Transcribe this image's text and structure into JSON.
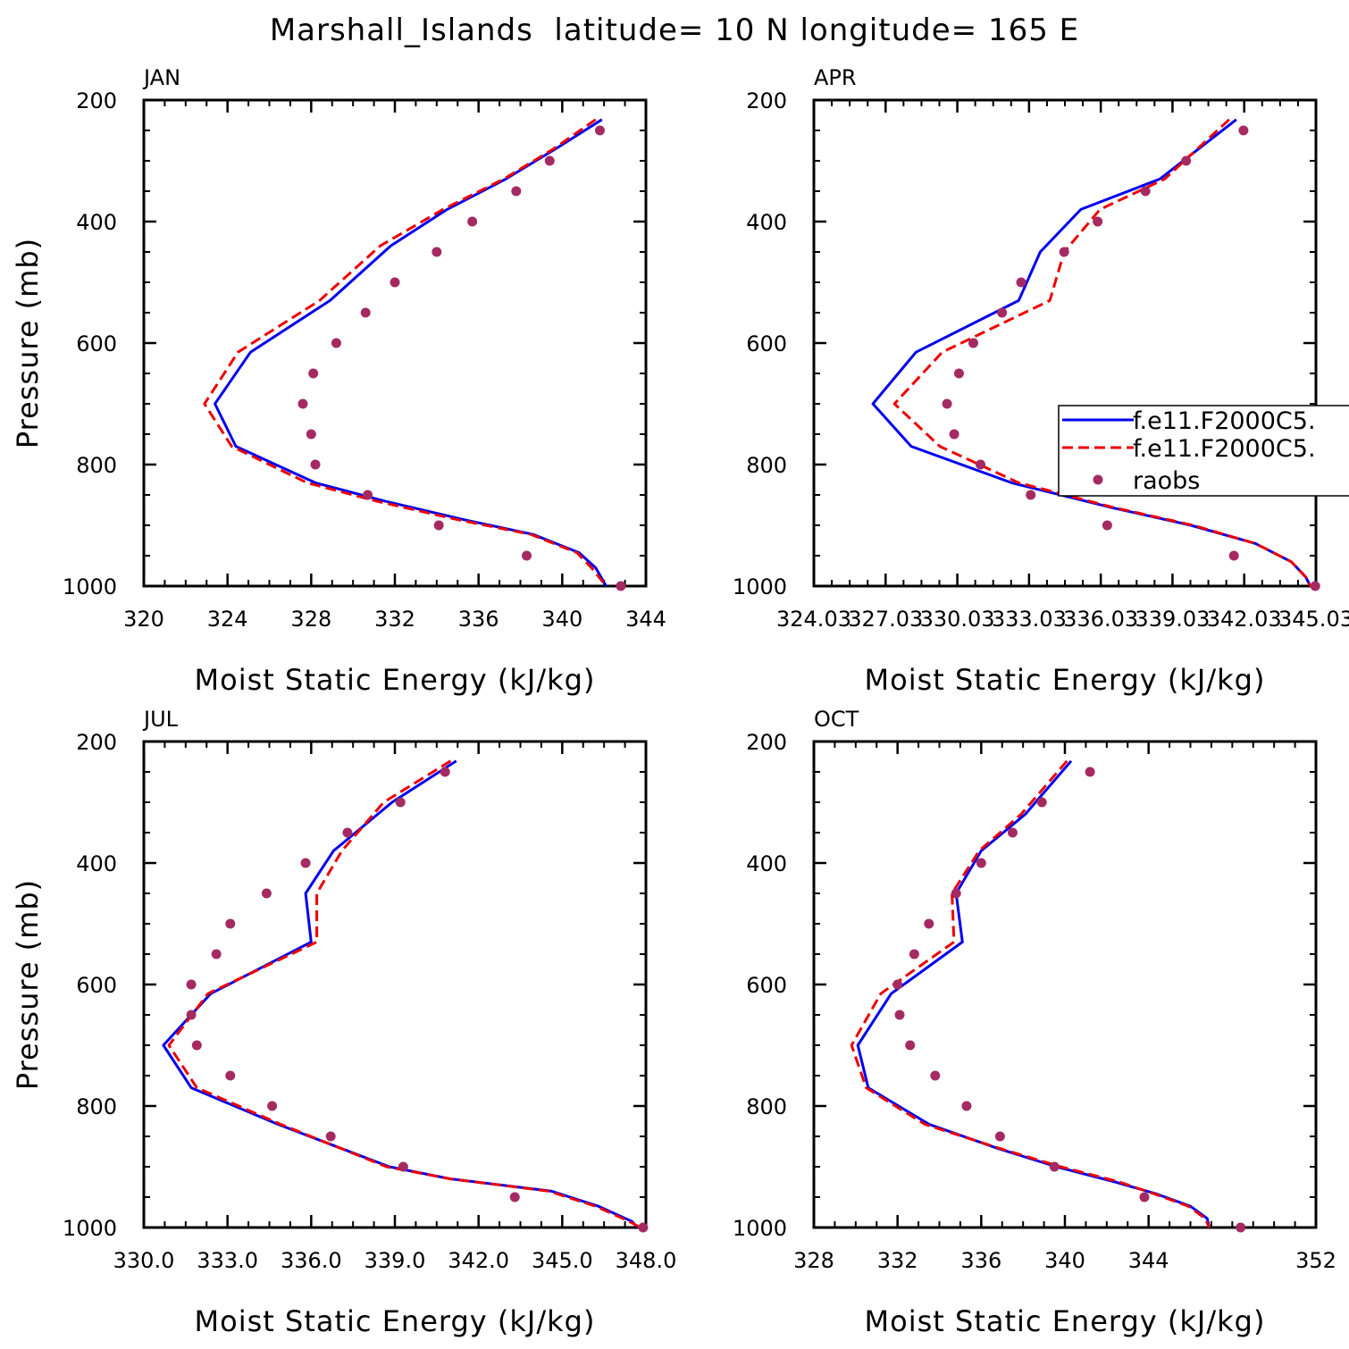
{
  "title": "Marshall_Islands  latitude= 10 N longitude= 165 E",
  "colors": {
    "model_a": "#0000ee",
    "model_b": "#ee0000",
    "raobs": "#a52a62",
    "axis": "#000000"
  },
  "legend": {
    "entries": [
      {
        "label": "f.e11.F2000C5.",
        "style": "solid",
        "color": "#0000ee"
      },
      {
        "label": "f.e11.F2000C5.",
        "style": "dashed",
        "color": "#ee0000"
      },
      {
        "label": "raobs",
        "style": "marker",
        "color": "#a52a62"
      }
    ]
  },
  "chart_data": [
    {
      "type": "line",
      "panel": "JAN",
      "xlabel": "Moist Static Energy (kJ/kg)",
      "ylabel": "Pressure (mb)",
      "xlim": [
        320,
        344
      ],
      "ylim": [
        200,
        1000
      ],
      "y_inverted": true,
      "xticks": [
        "320",
        "324",
        "328",
        "332",
        "336",
        "340",
        "344"
      ],
      "yticks": [
        "200",
        "400",
        "600",
        "800",
        "1000"
      ],
      "series": [
        {
          "style": "solid",
          "color": "#0000ee",
          "x": [
            341.9,
            339.7,
            337.3,
            334.5,
            331.8,
            328.9,
            325.1,
            323.4,
            324.4,
            328.2,
            331.5,
            335.2,
            338.6,
            340.8,
            341.6,
            342.1
          ],
          "y": [
            232,
            280,
            330,
            380,
            440,
            530,
            615,
            700,
            770,
            830,
            860,
            890,
            915,
            945,
            970,
            1000
          ]
        },
        {
          "style": "dashed",
          "color": "#ee0000",
          "x": [
            341.6,
            339.6,
            337.2,
            334.3,
            331.3,
            328.4,
            324.5,
            322.9,
            324.2,
            327.8,
            331.1,
            334.9,
            338.5,
            340.7,
            341.4,
            342.1
          ],
          "y": [
            232,
            280,
            330,
            380,
            440,
            530,
            615,
            700,
            770,
            830,
            860,
            890,
            915,
            945,
            970,
            1000
          ]
        },
        {
          "style": "marker",
          "color": "#a52a62",
          "x": [
            341.8,
            339.4,
            337.8,
            335.7,
            334.0,
            332.0,
            330.6,
            329.2,
            328.1,
            327.6,
            328.0,
            328.2,
            330.7,
            334.1,
            338.3,
            342.8
          ],
          "y": [
            250,
            300,
            350,
            400,
            450,
            500,
            550,
            600,
            650,
            700,
            750,
            800,
            850,
            900,
            950,
            1000
          ]
        }
      ]
    },
    {
      "type": "line",
      "panel": "APR",
      "xlabel": "Moist Static Energy (kJ/kg)",
      "ylabel": "Pressure (mb)",
      "xlim": [
        324.03,
        345.03
      ],
      "ylim": [
        200,
        1000
      ],
      "y_inverted": true,
      "xticks": [
        "324.03",
        "327.03",
        "330.03",
        "333.03",
        "336.03",
        "339.03",
        "342.03",
        "345.03"
      ],
      "yticks": [
        "200",
        "400",
        "600",
        "800",
        "1000"
      ],
      "series": [
        {
          "style": "solid",
          "color": "#0000ee",
          "x": [
            341.7,
            338.5,
            335.2,
            333.5,
            332.6,
            328.3,
            326.5,
            328.1,
            332.3,
            336.4,
            339.8,
            342.5,
            344.0,
            344.6,
            344.8
          ],
          "y": [
            232,
            330,
            380,
            450,
            530,
            615,
            700,
            770,
            830,
            870,
            900,
            930,
            960,
            985,
            1000
          ]
        },
        {
          "style": "dashed",
          "color": "#ee0000",
          "x": [
            341.4,
            338.7,
            336.0,
            334.5,
            333.9,
            329.4,
            327.4,
            329.3,
            332.6,
            336.5,
            339.9,
            342.5,
            344.0,
            344.6,
            344.8
          ],
          "y": [
            232,
            330,
            380,
            450,
            530,
            615,
            700,
            770,
            830,
            870,
            900,
            930,
            960,
            985,
            1000
          ]
        },
        {
          "style": "marker",
          "color": "#a52a62",
          "x": [
            342.0,
            339.6,
            337.9,
            335.9,
            334.5,
            332.7,
            331.9,
            330.7,
            330.1,
            329.6,
            329.9,
            331.0,
            333.1,
            336.3,
            341.6,
            345.0
          ],
          "y": [
            250,
            300,
            350,
            400,
            450,
            500,
            550,
            600,
            650,
            700,
            750,
            800,
            850,
            900,
            950,
            1000
          ]
        }
      ]
    },
    {
      "type": "line",
      "panel": "JUL",
      "xlabel": "Moist Static Energy (kJ/kg)",
      "ylabel": "Pressure (mb)",
      "xlim": [
        330.0,
        348.0
      ],
      "ylim": [
        200,
        1000
      ],
      "y_inverted": true,
      "xticks": [
        "330.0",
        "333.0",
        "336.0",
        "339.0",
        "342.0",
        "345.0",
        "348.0"
      ],
      "yticks": [
        "200",
        "400",
        "600",
        "800",
        "1000"
      ],
      "series": [
        {
          "style": "solid",
          "color": "#0000ee",
          "x": [
            341.2,
            338.9,
            336.8,
            335.8,
            336.0,
            332.4,
            330.7,
            331.7,
            334.8,
            338.8,
            341.0,
            344.6,
            346.3,
            347.5,
            347.7
          ],
          "y": [
            232,
            300,
            380,
            450,
            530,
            615,
            700,
            770,
            830,
            900,
            920,
            940,
            965,
            990,
            1000
          ]
        },
        {
          "style": "dashed",
          "color": "#ee0000",
          "x": [
            341.0,
            338.6,
            337.1,
            336.2,
            336.2,
            332.3,
            330.9,
            331.9,
            334.9,
            338.7,
            341.0,
            344.5,
            346.2,
            347.4,
            347.8
          ],
          "y": [
            232,
            300,
            380,
            450,
            530,
            615,
            700,
            770,
            830,
            900,
            920,
            940,
            965,
            990,
            1000
          ]
        },
        {
          "style": "marker",
          "color": "#a52a62",
          "x": [
            340.8,
            339.2,
            337.3,
            335.8,
            334.4,
            333.1,
            332.6,
            331.7,
            331.7,
            331.9,
            333.1,
            334.6,
            336.7,
            339.3,
            343.3,
            347.9
          ],
          "y": [
            250,
            300,
            350,
            400,
            450,
            500,
            550,
            600,
            650,
            700,
            750,
            800,
            850,
            900,
            950,
            1000
          ]
        }
      ]
    },
    {
      "type": "line",
      "panel": "OCT",
      "xlabel": "Moist Static Energy (kJ/kg)",
      "ylabel": "Pressure (mb)",
      "xlim": [
        328,
        352
      ],
      "ylim": [
        200,
        1000
      ],
      "y_inverted": true,
      "xticks": [
        "328",
        "332",
        "336",
        "340",
        "344",
        "352"
      ],
      "yticks": [
        "200",
        "400",
        "600",
        "800",
        "1000"
      ],
      "series": [
        {
          "style": "solid",
          "color": "#0000ee",
          "x": [
            340.3,
            338.1,
            336.0,
            334.8,
            335.1,
            331.7,
            330.1,
            330.6,
            333.5,
            336.8,
            339.6,
            342.4,
            344.4,
            346.0,
            346.8,
            346.9
          ],
          "y": [
            232,
            320,
            380,
            450,
            530,
            615,
            700,
            770,
            830,
            870,
            900,
            925,
            945,
            965,
            985,
            1000
          ]
        },
        {
          "style": "dashed",
          "color": "#ee0000",
          "x": [
            340.1,
            337.9,
            335.9,
            334.6,
            334.7,
            331.2,
            329.8,
            330.5,
            333.3,
            336.9,
            339.8,
            342.6,
            344.3,
            345.9,
            346.7,
            346.9
          ],
          "y": [
            232,
            320,
            380,
            450,
            530,
            615,
            700,
            770,
            830,
            870,
            900,
            925,
            945,
            965,
            985,
            1000
          ]
        },
        {
          "style": "marker",
          "color": "#a52a62",
          "x": [
            341.2,
            338.9,
            337.5,
            336.0,
            334.8,
            333.5,
            332.8,
            332.0,
            332.1,
            332.6,
            333.8,
            335.3,
            336.9,
            339.5,
            343.8,
            348.4
          ],
          "y": [
            250,
            300,
            350,
            400,
            450,
            500,
            550,
            600,
            650,
            700,
            750,
            800,
            850,
            900,
            950,
            1000
          ]
        }
      ]
    }
  ]
}
